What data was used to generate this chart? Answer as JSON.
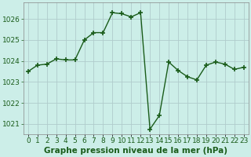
{
  "x": [
    0,
    1,
    2,
    3,
    4,
    5,
    6,
    7,
    8,
    9,
    10,
    11,
    12,
    13,
    14,
    15,
    16,
    17,
    18,
    19,
    20,
    21,
    22,
    23
  ],
  "y": [
    1023.5,
    1023.8,
    1023.85,
    1024.1,
    1024.05,
    1024.05,
    1025.0,
    1025.35,
    1025.35,
    1026.3,
    1026.25,
    1026.1,
    1026.3,
    1020.75,
    1021.4,
    1023.95,
    1023.55,
    1023.25,
    1023.1,
    1023.8,
    1023.95,
    1023.85,
    1023.6,
    1023.7
  ],
  "line_color": "#1a5c1a",
  "marker": "+",
  "marker_size": 4,
  "linewidth": 1.0,
  "background_color": "#cceee8",
  "grid_color": "#b0cccc",
  "title": "Graphe pression niveau de la mer (hPa)",
  "ylim": [
    1020.5,
    1026.8
  ],
  "xlim": [
    -0.5,
    23.5
  ],
  "yticks": [
    1021,
    1022,
    1023,
    1024,
    1025,
    1026
  ],
  "xtick_labels": [
    "0",
    "1",
    "2",
    "3",
    "4",
    "5",
    "6",
    "7",
    "8",
    "9",
    "10",
    "11",
    "12",
    "13",
    "14",
    "15",
    "16",
    "17",
    "18",
    "19",
    "20",
    "21",
    "22",
    "23"
  ],
  "title_fontsize": 7.5,
  "tick_fontsize": 6.5,
  "tick_color": "#1a5c1a",
  "spine_color": "#888888"
}
